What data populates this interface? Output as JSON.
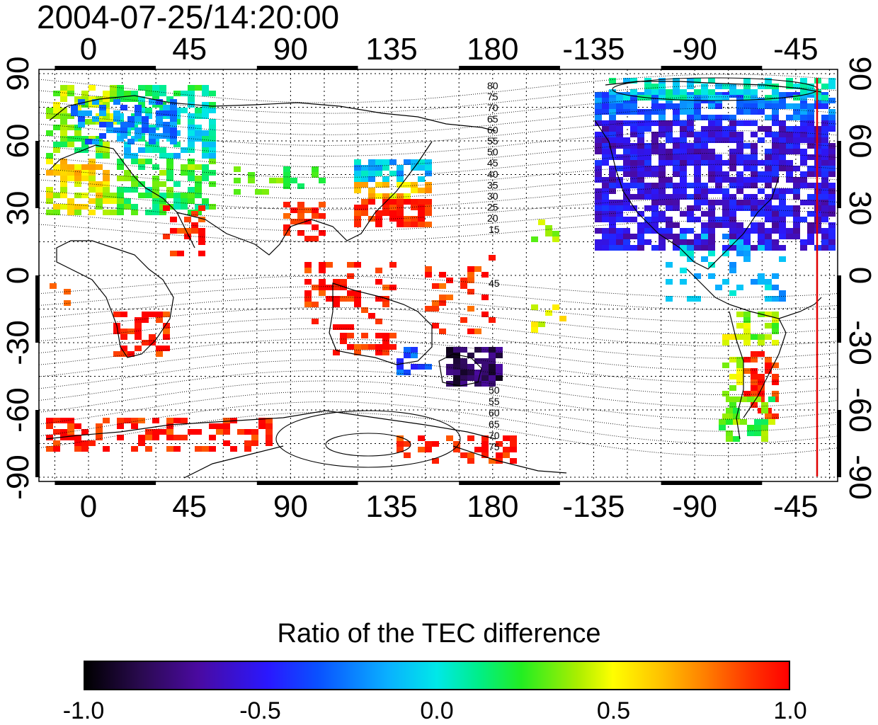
{
  "title": "2004-07-25/14:20:00",
  "map": {
    "lon_labels": [
      "0",
      "45",
      "90",
      "135",
      "180",
      "-135",
      "-90",
      "-45"
    ],
    "lat_labels": [
      "90",
      "60",
      "30",
      "0",
      "-30",
      "-60",
      "-90"
    ],
    "contour_labels_north": [
      "80",
      "75",
      "70",
      "65",
      "60",
      "55",
      "50",
      "45",
      "40",
      "35",
      "30",
      "25",
      "20",
      "15"
    ],
    "contour_labels_south": [
      "45",
      "50",
      "55",
      "60",
      "65",
      "70",
      "75"
    ],
    "terminator_color": "#e00000",
    "colors": {
      "land_outline": "#000000",
      "grid": "#000000"
    }
  },
  "colorbar": {
    "title": "Ratio of the TEC difference",
    "ticks": [
      "-1.0",
      "-0.5",
      "0.0",
      "0.5",
      "1.0"
    ],
    "range": [
      -1.0,
      1.0
    ],
    "scale_colors": [
      "#000000",
      "#4a0aa0",
      "#0a50ff",
      "#00e8e8",
      "#22ee22",
      "#ffff00",
      "#ff8000",
      "#ff0000"
    ]
  }
}
